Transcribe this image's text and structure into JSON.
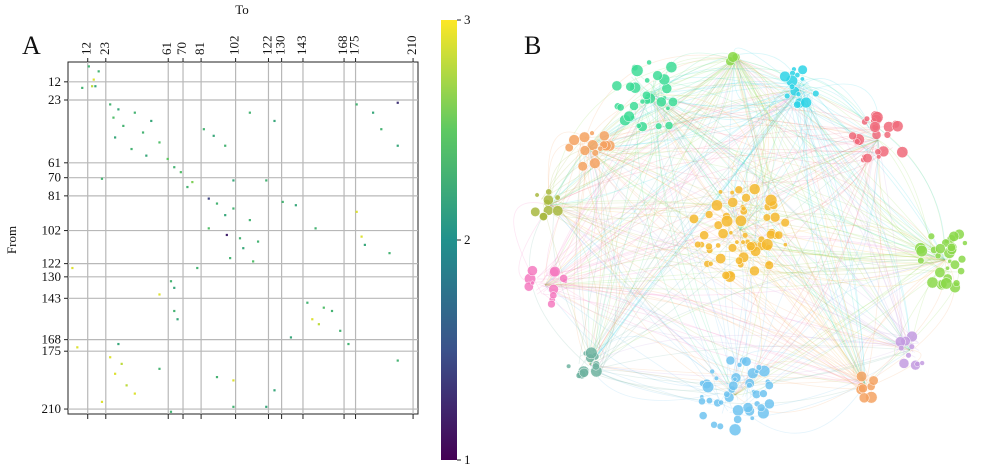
{
  "chart_data": [
    {
      "type": "heatmap",
      "panel": "A",
      "x_label": "To",
      "y_label": "From",
      "xlim": [
        0,
        213
      ],
      "ylim": [
        0,
        213
      ],
      "xticks": [
        12,
        23,
        61,
        70,
        81,
        102,
        122,
        130,
        143,
        168,
        175,
        210
      ],
      "yticks": [
        12,
        23,
        61,
        70,
        81,
        102,
        122,
        130,
        143,
        168,
        175,
        210
      ],
      "grid": true,
      "cells": [
        [
          2,
          12,
          2.3
        ],
        [
          5,
          18,
          2.3
        ],
        [
          10,
          15,
          2.9
        ],
        [
          14,
          14,
          2.8
        ],
        [
          14,
          16,
          2.2
        ],
        [
          15,
          8,
          2.3
        ],
        [
          25,
          25,
          2.3
        ],
        [
          28,
          30,
          2.2
        ],
        [
          30,
          40,
          2.3
        ],
        [
          33,
          27,
          2.4
        ],
        [
          35,
          50,
          2.2
        ],
        [
          38,
          33,
          2.3
        ],
        [
          42,
          45,
          2.3
        ],
        [
          45,
          28,
          2.2
        ],
        [
          48,
          55,
          2.4
        ],
        [
          52,
          38,
          2.3
        ],
        [
          56,
          47,
          2.2
        ],
        [
          58,
          60,
          2.5
        ],
        [
          40,
          82,
          2.3
        ],
        [
          44,
          88,
          2.2
        ],
        [
          50,
          95,
          2.3
        ],
        [
          35,
          125,
          2.2
        ],
        [
          30,
          110,
          2.3
        ],
        [
          25,
          175,
          2.3
        ],
        [
          30,
          185,
          2.2
        ],
        [
          40,
          190,
          2.3
        ],
        [
          50,
          200,
          2.2
        ],
        [
          24,
          200,
          1.3
        ],
        [
          63,
          64,
          2.3
        ],
        [
          66,
          68,
          2.4
        ],
        [
          72,
          75,
          2.6
        ],
        [
          75,
          72,
          2.3
        ],
        [
          70,
          20,
          2.3
        ],
        [
          71,
          100,
          2.2
        ],
        [
          71,
          120,
          2.3
        ],
        [
          82,
          85,
          1.4
        ],
        [
          85,
          90,
          2.3
        ],
        [
          88,
          100,
          2.3
        ],
        [
          92,
          95,
          2.2
        ],
        [
          95,
          110,
          2.3
        ],
        [
          100,
          85,
          2.4
        ],
        [
          104,
          96,
          1.2
        ],
        [
          106,
          104,
          2.3
        ],
        [
          108,
          115,
          2.3
        ],
        [
          112,
          106,
          2.2
        ],
        [
          118,
          98,
          2.3
        ],
        [
          120,
          112,
          2.4
        ],
        [
          84,
          130,
          2.3
        ],
        [
          86,
          138,
          2.2
        ],
        [
          100,
          150,
          2.3
        ],
        [
          110,
          180,
          2.2
        ],
        [
          115,
          195,
          2.3
        ],
        [
          90,
          175,
          2.9
        ],
        [
          105,
          178,
          2.9
        ],
        [
          124,
          2,
          2.9
        ],
        [
          124,
          78,
          2.3
        ],
        [
          132,
          62,
          2.3
        ],
        [
          136,
          64,
          2.2
        ],
        [
          140,
          55,
          2.9
        ],
        [
          145,
          145,
          2.3
        ],
        [
          148,
          155,
          2.4
        ],
        [
          150,
          160,
          2.3
        ],
        [
          155,
          148,
          2.9
        ],
        [
          158,
          152,
          2.8
        ],
        [
          162,
          165,
          2.3
        ],
        [
          166,
          135,
          2.2
        ],
        [
          150,
          64,
          2.3
        ],
        [
          155,
          66,
          2.2
        ],
        [
          170,
          170,
          2.3
        ],
        [
          170,
          30,
          2.2
        ],
        [
          172,
          5,
          2.9
        ],
        [
          178,
          25,
          2.9
        ],
        [
          182,
          32,
          2.8
        ],
        [
          188,
          28,
          2.9
        ],
        [
          195,
          35,
          2.8
        ],
        [
          200,
          40,
          2.9
        ],
        [
          185,
          55,
          2.3
        ],
        [
          190,
          90,
          2.3
        ],
        [
          192,
          100,
          2.9
        ],
        [
          198,
          125,
          2.2
        ],
        [
          205,
          20,
          2.9
        ],
        [
          208,
          100,
          2.3
        ],
        [
          208,
          120,
          2.2
        ],
        [
          211,
          62,
          2.3
        ],
        [
          180,
          200,
          2.3
        ]
      ],
      "colorbar": {
        "ylim": [
          1,
          3
        ],
        "yticks": [
          1,
          2,
          3
        ],
        "colormap": "viridis"
      }
    },
    {
      "type": "network",
      "panel": "B",
      "clusters": [
        {
          "color": "#3ddc97",
          "nodes": 30
        },
        {
          "color": "#2dd4e6",
          "nodes": 15
        },
        {
          "color": "#f06a7a",
          "nodes": 25
        },
        {
          "color": "#f4a261",
          "nodes": 15
        },
        {
          "color": "#a8b840",
          "nodes": 10
        },
        {
          "color": "#f5b92e",
          "nodes": 60
        },
        {
          "color": "#8bd84a",
          "nodes": 30
        },
        {
          "color": "#f57ac0",
          "nodes": 12
        },
        {
          "color": "#c39be0",
          "nodes": 10
        },
        {
          "color": "#6fb3a0",
          "nodes": 12
        },
        {
          "color": "#6ec3f0",
          "nodes": 45
        },
        {
          "color": "#f4a261",
          "nodes": 8
        },
        {
          "color": "#8bd84a",
          "nodes": 3
        }
      ]
    }
  ]
}
